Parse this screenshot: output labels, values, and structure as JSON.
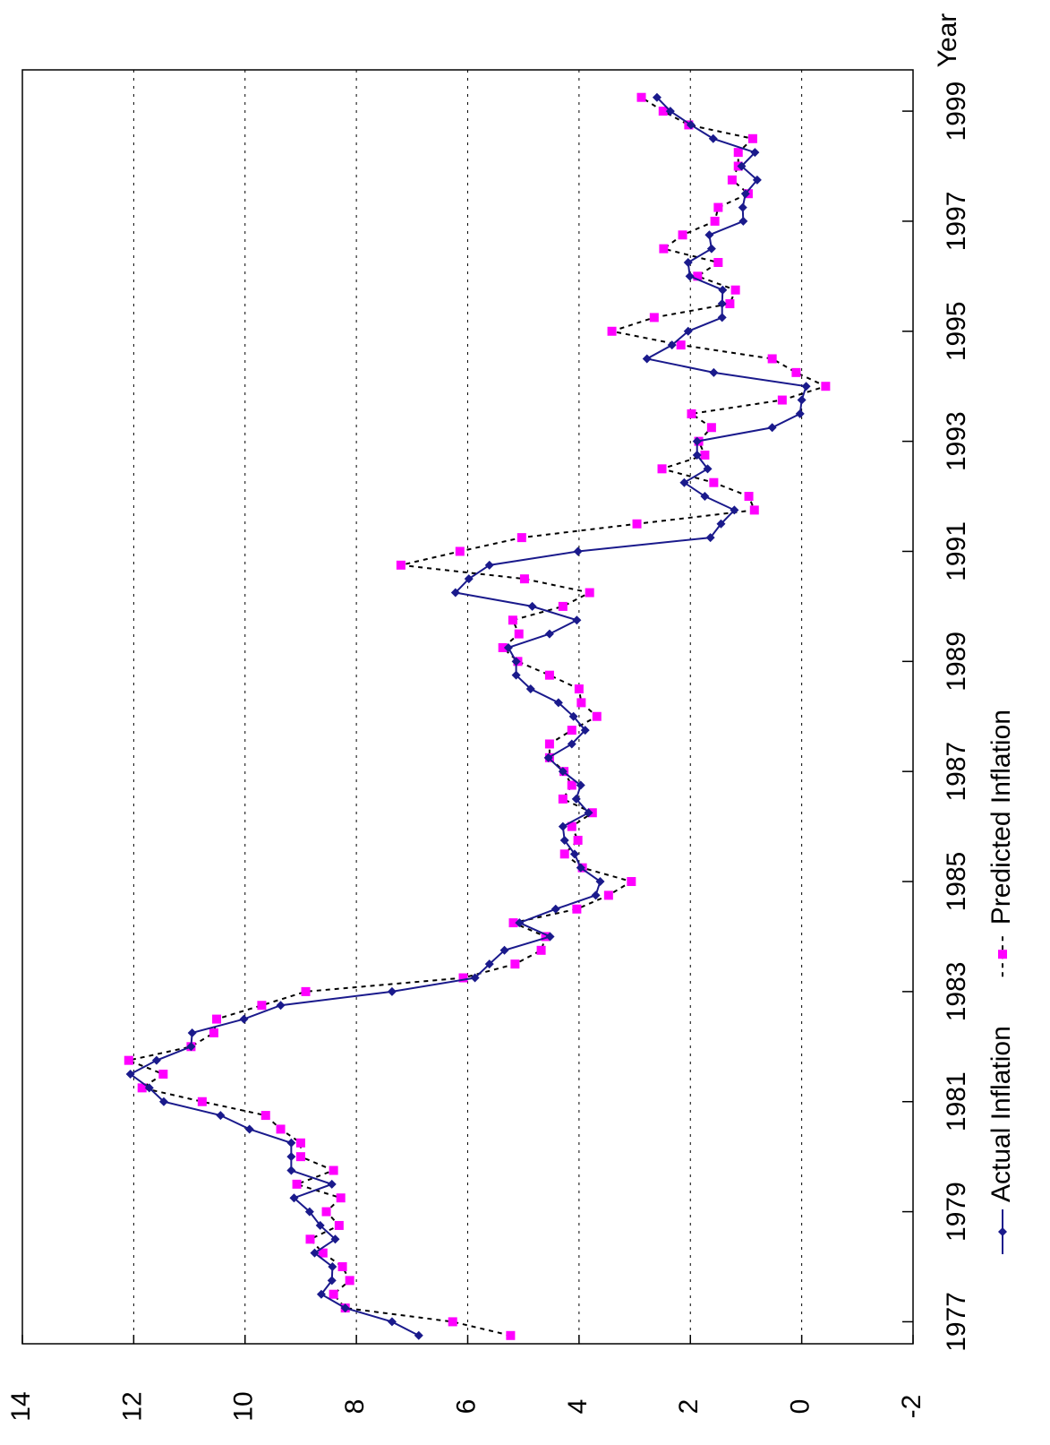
{
  "chart_data": {
    "type": "line",
    "x_label": "Year",
    "x": [
      1976.75,
      1977,
      1977.25,
      1977.5,
      1977.75,
      1978,
      1978.25,
      1978.5,
      1978.75,
      1979,
      1979.25,
      1979.5,
      1979.75,
      1980,
      1980.25,
      1980.5,
      1980.75,
      1981,
      1981.25,
      1981.5,
      1981.75,
      1982,
      1982.25,
      1982.5,
      1982.75,
      1983,
      1983.25,
      1983.5,
      1983.75,
      1984,
      1984.25,
      1984.5,
      1984.75,
      1985,
      1985.25,
      1985.5,
      1985.75,
      1986,
      1986.25,
      1986.5,
      1986.75,
      1987,
      1987.25,
      1987.5,
      1987.75,
      1988,
      1988.25,
      1988.5,
      1988.75,
      1989,
      1989.25,
      1989.5,
      1989.75,
      1990,
      1990.25,
      1990.5,
      1990.75,
      1991,
      1991.25,
      1991.5,
      1991.75,
      1992,
      1992.25,
      1992.5,
      1992.75,
      1993,
      1993.25,
      1993.5,
      1993.75,
      1994,
      1994.25,
      1994.5,
      1994.75,
      1995,
      1995.25,
      1995.5,
      1995.75,
      1996,
      1996.25,
      1996.5,
      1996.75,
      1997,
      1997.25,
      1997.5,
      1997.75,
      1998,
      1998.25,
      1998.5,
      1998.75,
      1999,
      1999.25
    ],
    "series": [
      {
        "name": "Actual Inflation",
        "color": "#1a1a8c",
        "marker": "diamond",
        "values": [
          6.88,
          7.36,
          8.2,
          8.63,
          8.44,
          8.43,
          8.75,
          8.38,
          8.65,
          8.84,
          9.12,
          8.44,
          9.17,
          9.17,
          9.17,
          9.92,
          10.44,
          11.46,
          11.72,
          12.06,
          11.59,
          10.97,
          10.95,
          10.02,
          9.36,
          7.36,
          5.87,
          5.61,
          5.34,
          4.52,
          5.07,
          4.42,
          3.7,
          3.62,
          3.97,
          4.08,
          4.26,
          4.29,
          3.83,
          4.05,
          3.97,
          4.29,
          4.55,
          4.13,
          3.89,
          4.1,
          4.37,
          4.87,
          5.13,
          5.13,
          5.27,
          4.53,
          4.04,
          4.84,
          6.22,
          5.98,
          5.61,
          4.02,
          1.64,
          1.45,
          1.21,
          1.74,
          2.11,
          1.69,
          1.88,
          1.88,
          0.53,
          0.03,
          0,
          -0.08,
          1.58,
          2.78,
          2.33,
          2.04,
          1.43,
          1.43,
          1.42,
          2.01,
          2.04,
          1.62,
          1.66,
          1.05,
          1.06,
          1.01,
          0.8,
          1.08,
          0.84,
          1.59,
          1.99,
          2.36,
          2.6
        ]
      },
      {
        "name": "Predicted Inflation",
        "color": "#ff00ff",
        "line_color": "#000000",
        "dashed": true,
        "marker": "square",
        "values": [
          5.23,
          6.27,
          8.2,
          8.41,
          8.12,
          8.25,
          8.6,
          8.83,
          8.31,
          8.54,
          8.28,
          9.07,
          8.41,
          9,
          9,
          9.36,
          9.63,
          10.77,
          11.85,
          11.47,
          12.09,
          10.97,
          10.56,
          10.51,
          9.7,
          8.91,
          6.08,
          5.15,
          4.68,
          4.6,
          5.18,
          4.04,
          3.47,
          3.06,
          3.94,
          4.26,
          4.02,
          4.13,
          3.76,
          4.29,
          4.13,
          4.27,
          4.53,
          4.53,
          4.13,
          3.68,
          3.96,
          4,
          4.53,
          5.1,
          5.37,
          5.08,
          5.19,
          4.29,
          3.81,
          4.98,
          7.2,
          6.14,
          5.03,
          2.96,
          0.85,
          0.95,
          1.58,
          2.51,
          1.74,
          1.85,
          1.62,
          1.98,
          0.35,
          -0.43,
          0.1,
          0.53,
          2.17,
          3.41,
          2.65,
          1.29,
          1.19,
          1.87,
          1.5,
          2.48,
          2.14,
          1.56,
          1.5,
          0.96,
          1.25,
          1.14,
          1.14,
          0.88,
          2.03,
          2.49,
          2.88
        ]
      }
    ],
    "xlim": [
      1976.6,
      1999.75
    ],
    "xticks": [
      1977,
      1979,
      1981,
      1983,
      1985,
      1987,
      1989,
      1991,
      1993,
      1995,
      1997,
      1999
    ],
    "ylim": [
      -2,
      14
    ],
    "yticks": [
      -2,
      0,
      2,
      4,
      6,
      8,
      10,
      12,
      14
    ],
    "grid": true
  }
}
